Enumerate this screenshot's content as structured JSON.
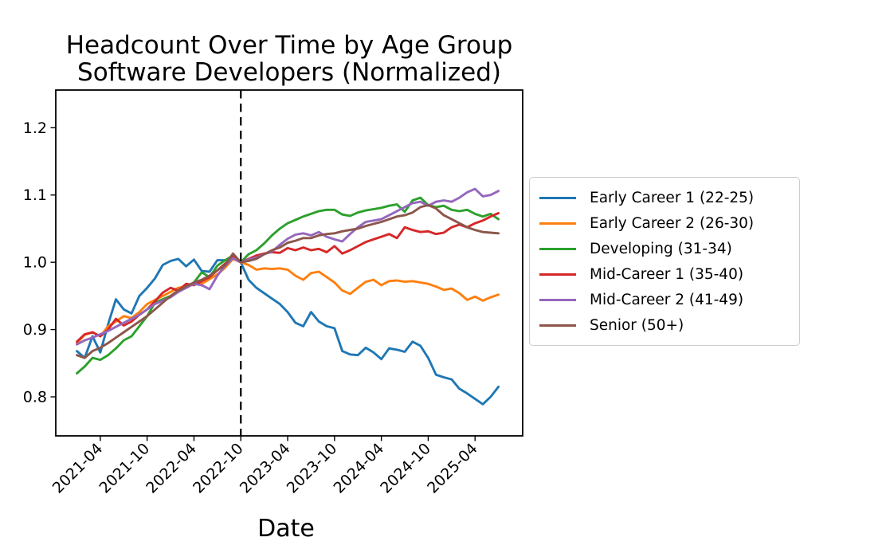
{
  "chart_data": {
    "type": "line",
    "title_line1": "Headcount Over Time by Age Group",
    "title_line2": "Software Developers (Normalized)",
    "xlabel": "Date",
    "ylabel": "",
    "grid": false,
    "legend_position": "right of plot",
    "x_tick_labels": [
      "2021-04",
      "2021-10",
      "2022-04",
      "2022-10",
      "2023-04",
      "2023-10",
      "2024-04",
      "2024-10",
      "2025-04"
    ],
    "y_tick_labels": [
      "0.8",
      "0.9",
      "1.0",
      "1.1",
      "1.2"
    ],
    "y_ticks": [
      0.8,
      0.9,
      1.0,
      1.1,
      1.2
    ],
    "ylim": [
      0.742,
      1.256
    ],
    "xlim_index": [
      -2.7,
      57.1
    ],
    "vline": {
      "x": "2022-10",
      "style": "dashed",
      "color": "#000000"
    },
    "normalization_point": {
      "x": "2022-10",
      "value": 1.0
    },
    "x": [
      "2021-01",
      "2021-02",
      "2021-03",
      "2021-04",
      "2021-05",
      "2021-06",
      "2021-07",
      "2021-08",
      "2021-09",
      "2021-10",
      "2021-11",
      "2021-12",
      "2022-01",
      "2022-02",
      "2022-03",
      "2022-04",
      "2022-05",
      "2022-06",
      "2022-07",
      "2022-08",
      "2022-09",
      "2022-10",
      "2022-11",
      "2022-12",
      "2023-01",
      "2023-02",
      "2023-03",
      "2023-04",
      "2023-05",
      "2023-06",
      "2023-07",
      "2023-08",
      "2023-09",
      "2023-10",
      "2023-11",
      "2023-12",
      "2024-01",
      "2024-02",
      "2024-03",
      "2024-04",
      "2024-05",
      "2024-06",
      "2024-07",
      "2024-08",
      "2024-09",
      "2024-10",
      "2024-11",
      "2024-12",
      "2025-01",
      "2025-02",
      "2025-03",
      "2025-04",
      "2025-05",
      "2025-06",
      "2025-07"
    ],
    "series": [
      {
        "name": "Early Career 1 (22-25)",
        "color": "#1f77b4",
        "values": [
          0.868,
          0.858,
          0.89,
          0.866,
          0.908,
          0.945,
          0.93,
          0.924,
          0.95,
          0.962,
          0.976,
          0.996,
          1.002,
          1.005,
          0.994,
          1.004,
          0.987,
          0.986,
          1.003,
          1.003,
          1.008,
          1.0,
          0.974,
          0.962,
          0.954,
          0.946,
          0.938,
          0.926,
          0.91,
          0.905,
          0.926,
          0.912,
          0.905,
          0.902,
          0.868,
          0.863,
          0.862,
          0.873,
          0.866,
          0.856,
          0.872,
          0.87,
          0.867,
          0.882,
          0.876,
          0.858,
          0.833,
          0.829,
          0.826,
          0.812,
          0.805,
          0.797,
          0.789,
          0.8,
          0.815
        ]
      },
      {
        "name": "Early Career 2 (26-30)",
        "color": "#ff7f0e",
        "values": [
          0.88,
          0.892,
          0.896,
          0.89,
          0.905,
          0.912,
          0.92,
          0.917,
          0.926,
          0.938,
          0.944,
          0.95,
          0.956,
          0.962,
          0.964,
          0.97,
          0.968,
          0.975,
          0.982,
          0.992,
          1.005,
          1.0,
          0.996,
          0.989,
          0.991,
          0.99,
          0.991,
          0.989,
          0.98,
          0.974,
          0.984,
          0.986,
          0.978,
          0.97,
          0.958,
          0.953,
          0.962,
          0.971,
          0.974,
          0.966,
          0.972,
          0.973,
          0.971,
          0.972,
          0.97,
          0.968,
          0.964,
          0.959,
          0.961,
          0.954,
          0.944,
          0.949,
          0.943,
          0.948,
          0.952
        ]
      },
      {
        "name": "Developing (31-34)",
        "color": "#2ca02c",
        "values": [
          0.835,
          0.845,
          0.858,
          0.855,
          0.862,
          0.872,
          0.884,
          0.89,
          0.905,
          0.92,
          0.94,
          0.945,
          0.95,
          0.958,
          0.962,
          0.97,
          0.985,
          0.978,
          0.995,
          1.003,
          1.01,
          1.0,
          1.012,
          1.018,
          1.028,
          1.04,
          1.05,
          1.058,
          1.063,
          1.068,
          1.072,
          1.076,
          1.078,
          1.078,
          1.071,
          1.069,
          1.074,
          1.077,
          1.079,
          1.081,
          1.084,
          1.086,
          1.075,
          1.092,
          1.096,
          1.085,
          1.082,
          1.084,
          1.078,
          1.076,
          1.078,
          1.072,
          1.068,
          1.072,
          1.064
        ]
      },
      {
        "name": "Mid-Career 1 (35-40)",
        "color": "#d62728",
        "values": [
          0.882,
          0.893,
          0.896,
          0.89,
          0.9,
          0.916,
          0.906,
          0.912,
          0.922,
          0.93,
          0.942,
          0.955,
          0.962,
          0.958,
          0.968,
          0.966,
          0.972,
          0.978,
          0.988,
          0.998,
          1.008,
          1.0,
          1.005,
          1.01,
          1.013,
          1.015,
          1.014,
          1.021,
          1.018,
          1.022,
          1.018,
          1.02,
          1.015,
          1.024,
          1.013,
          1.018,
          1.024,
          1.03,
          1.034,
          1.038,
          1.042,
          1.036,
          1.052,
          1.048,
          1.045,
          1.046,
          1.042,
          1.044,
          1.052,
          1.056,
          1.052,
          1.058,
          1.062,
          1.068,
          1.073
        ]
      },
      {
        "name": "Mid-Career 2 (41-49)",
        "color": "#9467bd",
        "values": [
          0.878,
          0.884,
          0.888,
          0.893,
          0.898,
          0.904,
          0.91,
          0.916,
          0.922,
          0.93,
          0.938,
          0.943,
          0.948,
          0.956,
          0.962,
          0.968,
          0.966,
          0.96,
          0.98,
          0.995,
          1.006,
          1.0,
          1.004,
          1.007,
          1.012,
          1.016,
          1.026,
          1.035,
          1.041,
          1.043,
          1.04,
          1.045,
          1.038,
          1.034,
          1.031,
          1.042,
          1.052,
          1.06,
          1.062,
          1.064,
          1.07,
          1.076,
          1.082,
          1.088,
          1.09,
          1.084,
          1.09,
          1.092,
          1.09,
          1.096,
          1.104,
          1.109,
          1.098,
          1.1,
          1.106
        ]
      },
      {
        "name": "Senior (50+)",
        "color": "#8c564b",
        "values": [
          0.862,
          0.858,
          0.868,
          0.873,
          0.88,
          0.888,
          0.896,
          0.904,
          0.912,
          0.92,
          0.93,
          0.94,
          0.95,
          0.958,
          0.964,
          0.97,
          0.974,
          0.98,
          0.988,
          0.996,
          1.013,
          1.0,
          1.002,
          1.005,
          1.012,
          1.018,
          1.022,
          1.029,
          1.032,
          1.036,
          1.036,
          1.04,
          1.042,
          1.043,
          1.046,
          1.048,
          1.05,
          1.054,
          1.057,
          1.06,
          1.064,
          1.068,
          1.07,
          1.074,
          1.082,
          1.085,
          1.08,
          1.07,
          1.064,
          1.058,
          1.052,
          1.048,
          1.045,
          1.044,
          1.043
        ]
      }
    ]
  }
}
